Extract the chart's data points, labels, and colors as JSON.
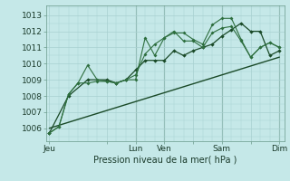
{
  "xlabel": "Pression niveau de la mer( hPa )",
  "bg_color": "#c5e8e8",
  "grid_color": "#a8d0d0",
  "line_color": "#2d6e3e",
  "line_color2": "#1a4a28",
  "x_tick_labels": [
    "Jeu",
    "",
    "Lun",
    "Ven",
    "",
    "Sam",
    "",
    "Dim"
  ],
  "x_tick_positions": [
    0,
    6,
    9,
    12,
    15,
    18,
    21,
    24
  ],
  "ylim": [
    1005.2,
    1013.6
  ],
  "xlim": [
    -0.3,
    24.5
  ],
  "yticks": [
    1006,
    1007,
    1008,
    1009,
    1010,
    1011,
    1012,
    1013
  ],
  "line1_x": [
    0,
    1,
    2,
    3,
    4,
    5,
    6,
    7,
    8,
    9,
    10,
    11,
    12,
    13,
    14,
    15,
    16,
    17,
    18,
    19,
    20,
    21,
    22,
    23,
    24
  ],
  "line1_y": [
    1005.7,
    1006.1,
    1008.1,
    1008.8,
    1009.9,
    1009.0,
    1008.9,
    1008.8,
    1009.0,
    1009.0,
    1011.6,
    1010.5,
    1011.6,
    1012.0,
    1011.4,
    1011.4,
    1011.0,
    1011.9,
    1012.2,
    1012.3,
    1011.4,
    1010.4,
    1011.0,
    1011.3,
    1011.0
  ],
  "line2_x": [
    0,
    1,
    2,
    3,
    4,
    5,
    6,
    7,
    8,
    9,
    10,
    11,
    12,
    13,
    14,
    15,
    16,
    17,
    18,
    19,
    20,
    21,
    22,
    23,
    24
  ],
  "line2_y": [
    1005.7,
    1006.1,
    1008.1,
    1008.8,
    1008.8,
    1008.9,
    1008.9,
    1008.8,
    1009.0,
    1009.3,
    1010.6,
    1011.2,
    1011.6,
    1011.9,
    1011.9,
    1011.5,
    1011.2,
    1012.4,
    1012.8,
    1012.8,
    1011.5,
    1010.4,
    1011.0,
    1011.3,
    1011.0
  ],
  "line3_x": [
    0,
    2,
    4,
    6,
    7,
    8,
    9,
    10,
    11,
    12,
    13,
    14,
    15,
    16,
    17,
    18,
    19,
    20,
    21,
    22,
    23,
    24
  ],
  "line3_y": [
    1005.7,
    1008.0,
    1009.0,
    1009.0,
    1008.8,
    1009.0,
    1009.6,
    1010.2,
    1010.2,
    1010.2,
    1010.8,
    1010.5,
    1010.8,
    1011.0,
    1011.2,
    1011.7,
    1012.1,
    1012.5,
    1012.0,
    1012.0,
    1010.5,
    1010.8
  ],
  "line4_x": [
    0,
    24
  ],
  "line4_y": [
    1006.0,
    1010.4
  ],
  "vline_positions": [
    9,
    12,
    18,
    24
  ]
}
